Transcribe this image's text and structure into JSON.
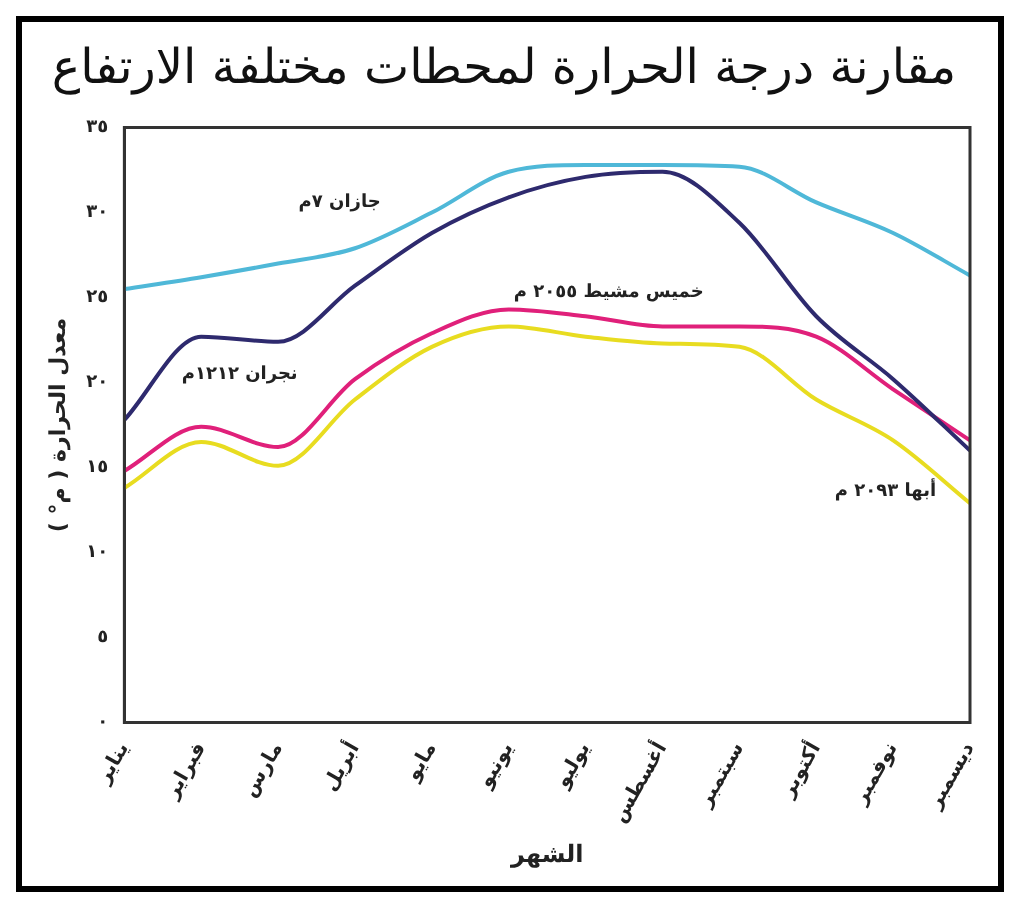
{
  "chart_data": {
    "type": "line",
    "title": "مقارنة درجة الحرارة لمحطات مختلفة الارتفاع",
    "xlabel": "الشهر",
    "ylabel": "معدل الحرارة ( م° )",
    "categories": [
      "يناير",
      "فبراير",
      "مارس",
      "أبريل",
      "مايو",
      "يونيو",
      "يوليو",
      "أغسطس",
      "سبتمبر",
      "أكتوبر",
      "نوفمبر",
      "ديسمبر"
    ],
    "series": [
      {
        "name": "جازان ٧م",
        "color": "#4fb8d8",
        "values": [
          25.5,
          26.2,
          27,
          27.9,
          30,
          32.4,
          32.8,
          32.8,
          32.7,
          30.6,
          28.8,
          26.3
        ]
      },
      {
        "name": "نجران ١٢١٢م",
        "color": "#2e2a6e",
        "values": [
          17.8,
          22.7,
          22.4,
          25.7,
          28.8,
          30.9,
          32.1,
          32.4,
          29.4,
          23.9,
          20.2,
          16
        ]
      },
      {
        "name": "خميس مشيط ٢٠٥٥ م",
        "color": "#e0207a",
        "values": [
          14.8,
          17.4,
          16.2,
          20.2,
          22.9,
          24.3,
          23.9,
          23.3,
          23.3,
          22.7,
          19.6,
          16.6
        ]
      },
      {
        "name": "أبها ٢٠٩٣ م",
        "color": "#e8dc20",
        "values": [
          13.8,
          16.5,
          15.1,
          19,
          22.1,
          23.3,
          22.7,
          22.3,
          22.1,
          19,
          16.6,
          12.9
        ]
      }
    ],
    "ylim": [
      0,
      35
    ],
    "yticks": [
      {
        "value": 0,
        "label": "٠"
      },
      {
        "value": 5,
        "label": "٥"
      },
      {
        "value": 10,
        "label": "١٠"
      },
      {
        "value": 15,
        "label": "١٥"
      },
      {
        "value": 20,
        "label": "٢٠"
      },
      {
        "value": 25,
        "label": "٢٥"
      },
      {
        "value": 30,
        "label": "٣٠"
      },
      {
        "value": 35,
        "label": "٣٥"
      }
    ],
    "grid": false,
    "legend": false,
    "marker": "none",
    "line_style": "solid"
  }
}
